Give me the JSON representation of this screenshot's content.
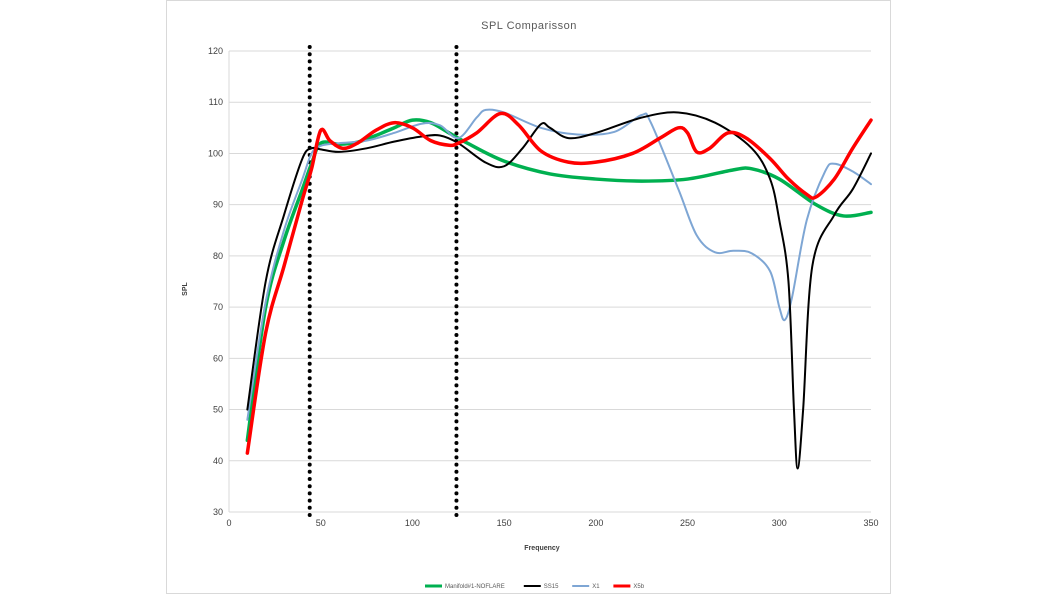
{
  "chart_data": {
    "type": "line",
    "title": "SPL Comparisson",
    "xlabel": "Frequency",
    "ylabel": "SPL",
    "xlim": [
      0,
      350
    ],
    "ylim": [
      30,
      120
    ],
    "xticks": [
      0,
      50,
      100,
      150,
      200,
      250,
      300,
      350
    ],
    "yticks": [
      30,
      40,
      50,
      60,
      70,
      80,
      90,
      100,
      110,
      120
    ],
    "grid": "horizontal",
    "legend": "bottom",
    "vertical_markers": [
      {
        "x": 44,
        "style": "dotted"
      },
      {
        "x": 124,
        "style": "dotted"
      }
    ],
    "series": [
      {
        "name": "Manifold#1-NOFLARE",
        "color": "#00b050",
        "width": 3.5,
        "points": [
          [
            10,
            44
          ],
          [
            20,
            70
          ],
          [
            30,
            83
          ],
          [
            40,
            93
          ],
          [
            45,
            98
          ],
          [
            50,
            102
          ],
          [
            60,
            101.8
          ],
          [
            70,
            102.2
          ],
          [
            80,
            103.5
          ],
          [
            90,
            105
          ],
          [
            100,
            106.5
          ],
          [
            110,
            106
          ],
          [
            120,
            104
          ],
          [
            130,
            102
          ],
          [
            150,
            98.5
          ],
          [
            175,
            96
          ],
          [
            200,
            95
          ],
          [
            225,
            94.6
          ],
          [
            250,
            95
          ],
          [
            275,
            96.8
          ],
          [
            285,
            97
          ],
          [
            300,
            95
          ],
          [
            320,
            90
          ],
          [
            335,
            87.8
          ],
          [
            350,
            88.5
          ]
        ]
      },
      {
        "name": "SS15",
        "color": "#000000",
        "width": 2,
        "points": [
          [
            10,
            50
          ],
          [
            20,
            75
          ],
          [
            30,
            88
          ],
          [
            40,
            99
          ],
          [
            45,
            101
          ],
          [
            50,
            100.8
          ],
          [
            60,
            100.3
          ],
          [
            75,
            101
          ],
          [
            90,
            102.3
          ],
          [
            105,
            103.3
          ],
          [
            115,
            103.5
          ],
          [
            125,
            102
          ],
          [
            140,
            98.2
          ],
          [
            150,
            97.5
          ],
          [
            160,
            101
          ],
          [
            170,
            105.7
          ],
          [
            175,
            105
          ],
          [
            185,
            103
          ],
          [
            200,
            104
          ],
          [
            225,
            107
          ],
          [
            245,
            108
          ],
          [
            265,
            106
          ],
          [
            285,
            101
          ],
          [
            295,
            95
          ],
          [
            300,
            87
          ],
          [
            305,
            75
          ],
          [
            308,
            50
          ],
          [
            310,
            38.5
          ],
          [
            313,
            50
          ],
          [
            318,
            78
          ],
          [
            330,
            88
          ],
          [
            340,
            93
          ],
          [
            350,
            100
          ]
        ]
      },
      {
        "name": "X1",
        "color": "#7ea6d4",
        "width": 2,
        "points": [
          [
            10,
            48
          ],
          [
            20,
            71
          ],
          [
            30,
            85
          ],
          [
            40,
            95
          ],
          [
            45,
            100
          ],
          [
            50,
            101.5
          ],
          [
            60,
            102
          ],
          [
            75,
            102.5
          ],
          [
            90,
            104
          ],
          [
            105,
            105.8
          ],
          [
            115,
            105.5
          ],
          [
            125,
            103
          ],
          [
            135,
            107
          ],
          [
            140,
            108.5
          ],
          [
            150,
            108
          ],
          [
            170,
            105
          ],
          [
            190,
            103.7
          ],
          [
            210,
            104.2
          ],
          [
            225,
            107.5
          ],
          [
            230,
            106
          ],
          [
            245,
            93
          ],
          [
            255,
            84
          ],
          [
            265,
            80.7
          ],
          [
            275,
            81
          ],
          [
            285,
            80.5
          ],
          [
            295,
            77
          ],
          [
            300,
            70
          ],
          [
            303,
            67.5
          ],
          [
            307,
            72
          ],
          [
            315,
            87
          ],
          [
            325,
            96.5
          ],
          [
            330,
            98
          ],
          [
            340,
            96.5
          ],
          [
            350,
            94
          ]
        ]
      },
      {
        "name": "X5b",
        "color": "#ff0000",
        "width": 3.5,
        "points": [
          [
            10,
            41.5
          ],
          [
            20,
            65
          ],
          [
            30,
            78
          ],
          [
            40,
            91
          ],
          [
            45,
            97
          ],
          [
            50,
            104.5
          ],
          [
            55,
            102.5
          ],
          [
            62,
            101
          ],
          [
            70,
            102
          ],
          [
            80,
            104.5
          ],
          [
            90,
            106
          ],
          [
            100,
            105
          ],
          [
            110,
            102.5
          ],
          [
            120,
            101.6
          ],
          [
            125,
            102
          ],
          [
            135,
            104
          ],
          [
            148,
            107.8
          ],
          [
            158,
            105.5
          ],
          [
            170,
            100.5
          ],
          [
            185,
            98.3
          ],
          [
            200,
            98.3
          ],
          [
            220,
            100
          ],
          [
            235,
            103
          ],
          [
            245,
            105
          ],
          [
            250,
            104
          ],
          [
            255,
            100.3
          ],
          [
            262,
            101
          ],
          [
            272,
            104
          ],
          [
            282,
            103
          ],
          [
            295,
            99
          ],
          [
            305,
            95
          ],
          [
            315,
            92
          ],
          [
            320,
            91.5
          ],
          [
            330,
            95
          ],
          [
            340,
            101
          ],
          [
            350,
            106.5
          ]
        ]
      }
    ]
  }
}
